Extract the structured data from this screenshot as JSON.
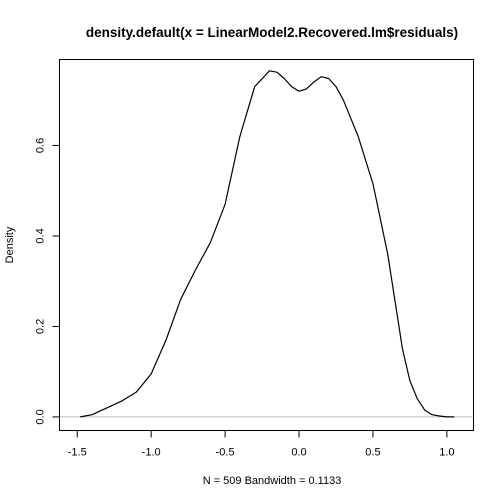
{
  "chart_data": {
    "type": "line",
    "title": "density.default(x = LinearModel2.Recovered.lm$residuals)",
    "xlabel": "N = 509   Bandwidth = 0.1133",
    "ylabel": "Density",
    "xlim": [
      -1.62,
      1.18
    ],
    "ylim": [
      -0.03,
      0.79
    ],
    "x_ticks": [
      -1.5,
      -1.0,
      -0.5,
      0.0,
      0.5,
      1.0
    ],
    "x_tick_labels": [
      "-1.5",
      "-1.0",
      "-0.5",
      "0.0",
      "0.5",
      "1.0"
    ],
    "y_ticks": [
      0.0,
      0.2,
      0.4,
      0.6
    ],
    "y_tick_labels": [
      "0.0",
      "0.2",
      "0.4",
      "0.6"
    ],
    "baseline": 0.0,
    "grid": false,
    "legend": "none",
    "colors": {
      "line": "#000000",
      "baseline": "#bebebe",
      "frame": "#000000"
    },
    "series": [
      {
        "x": [
          -1.48,
          -1.4,
          -1.3,
          -1.2,
          -1.1,
          -1.0,
          -0.9,
          -0.8,
          -0.7,
          -0.6,
          -0.5,
          -0.4,
          -0.3,
          -0.2,
          -0.15,
          -0.1,
          -0.05,
          0.0,
          0.05,
          0.1,
          0.15,
          0.2,
          0.25,
          0.3,
          0.35,
          0.4,
          0.5,
          0.6,
          0.7,
          0.75,
          0.8,
          0.85,
          0.9,
          0.95,
          1.0,
          1.05
        ],
        "y": [
          0.0,
          0.005,
          0.02,
          0.035,
          0.055,
          0.095,
          0.17,
          0.26,
          0.325,
          0.385,
          0.47,
          0.62,
          0.73,
          0.765,
          0.762,
          0.748,
          0.73,
          0.72,
          0.725,
          0.74,
          0.752,
          0.748,
          0.73,
          0.7,
          0.66,
          0.62,
          0.515,
          0.36,
          0.15,
          0.08,
          0.04,
          0.015,
          0.005,
          0.002,
          0.0,
          0.0
        ]
      }
    ]
  }
}
